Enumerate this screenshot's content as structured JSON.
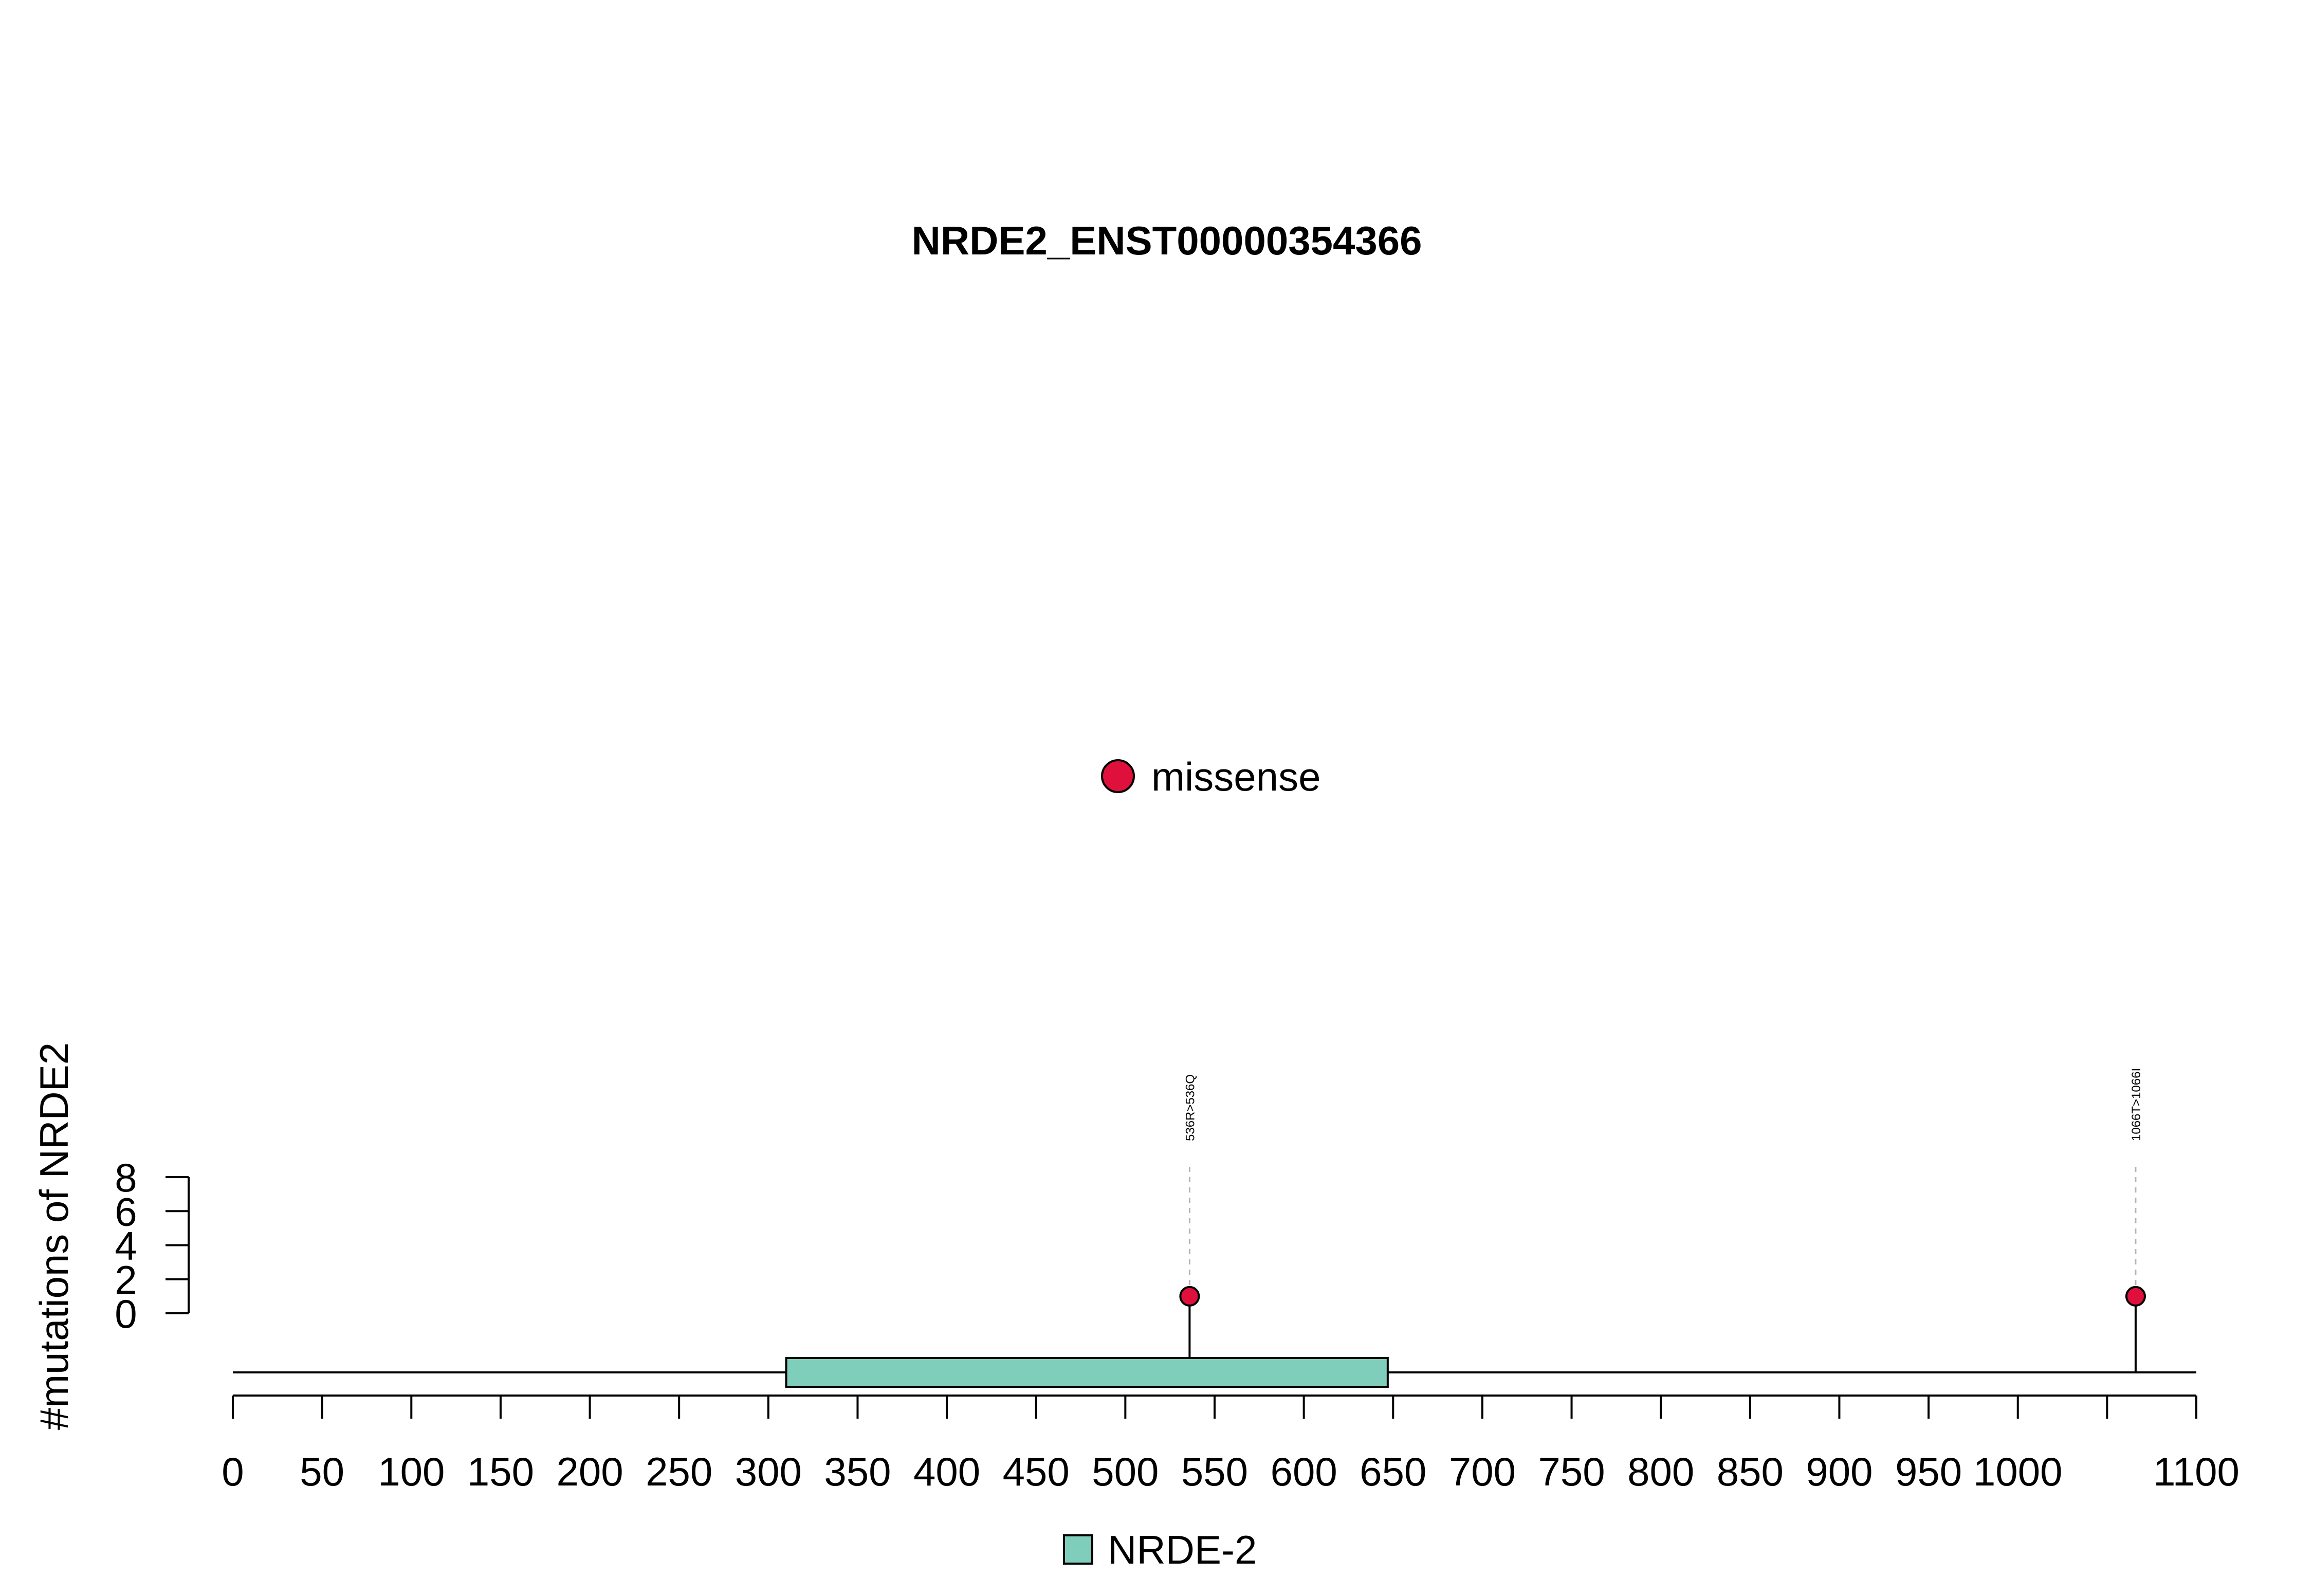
{
  "chart_data": {
    "type": "lollipop",
    "title": "NRDE2_ENST00000354366",
    "xlabel": "",
    "ylabel": "#mutations of NRDE2",
    "xlim": [
      0,
      1100
    ],
    "x_ticks": [
      0,
      50,
      100,
      150,
      200,
      250,
      300,
      350,
      400,
      450,
      500,
      550,
      600,
      650,
      700,
      750,
      800,
      850,
      900,
      950,
      1000,
      1100
    ],
    "y_ticks": [
      0,
      2,
      4,
      6,
      8
    ],
    "ylim": [
      0,
      8
    ],
    "protein_length": 1100,
    "domains": [
      {
        "name": "NRDE-2",
        "start": 310,
        "end": 647,
        "color": "#7fcdbb"
      }
    ],
    "mutations": [
      {
        "position": 536,
        "count": 1,
        "label": "536R>536Q",
        "type": "missense"
      },
      {
        "position": 1066,
        "count": 1,
        "label": "1066T>1066I",
        "type": "missense"
      }
    ],
    "mutation_legend": [
      {
        "type": "missense",
        "label": "missense",
        "color": "#e0103c"
      }
    ],
    "domain_legend": [
      {
        "label": "NRDE-2",
        "color": "#7fcdbb"
      }
    ],
    "grid": false
  }
}
